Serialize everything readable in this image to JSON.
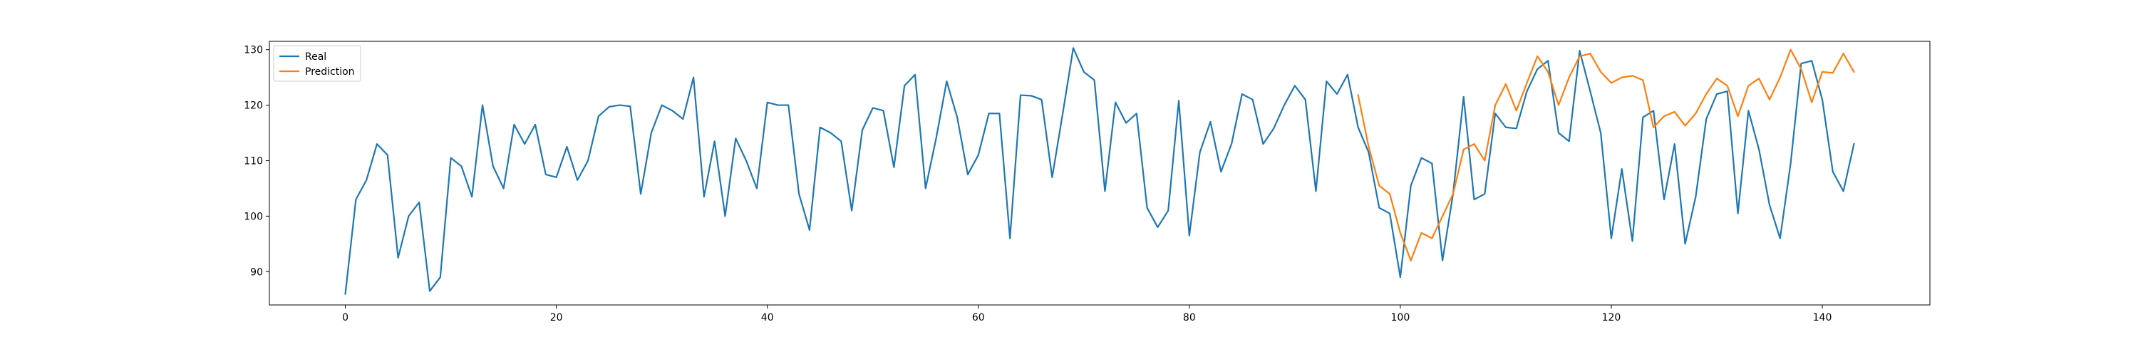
{
  "chart_data": {
    "type": "line",
    "title": "",
    "xlabel": "",
    "ylabel": "",
    "xlim": [
      -7.2,
      150.2
    ],
    "ylim": [
      84,
      131.5
    ],
    "xticks": [
      0,
      20,
      40,
      60,
      80,
      100,
      120,
      140
    ],
    "yticks": [
      90,
      100,
      110,
      120,
      130
    ],
    "grid": false,
    "legend_position": "top-left",
    "series": [
      {
        "name": "Real",
        "color": "#1f77b4",
        "x": [
          0,
          1,
          2,
          3,
          4,
          5,
          6,
          7,
          8,
          9,
          10,
          11,
          12,
          13,
          14,
          15,
          16,
          17,
          18,
          19,
          20,
          21,
          22,
          23,
          24,
          25,
          26,
          27,
          28,
          29,
          30,
          31,
          32,
          33,
          34,
          35,
          36,
          37,
          38,
          39,
          40,
          41,
          42,
          43,
          44,
          45,
          46,
          47,
          48,
          49,
          50,
          51,
          52,
          53,
          54,
          55,
          56,
          57,
          58,
          59,
          60,
          61,
          62,
          63,
          64,
          65,
          66,
          67,
          68,
          69,
          70,
          71,
          72,
          73,
          74,
          75,
          76,
          77,
          78,
          79,
          80,
          81,
          82,
          83,
          84,
          85,
          86,
          87,
          88,
          89,
          90,
          91,
          92,
          93,
          94,
          95,
          96,
          97,
          98,
          99,
          100,
          101,
          102,
          103,
          104,
          105,
          106,
          107,
          108,
          109,
          110,
          111,
          112,
          113,
          114,
          115,
          116,
          117,
          118,
          119,
          120,
          121,
          122,
          123,
          124,
          125,
          126,
          127,
          128,
          129,
          130,
          131,
          132,
          133,
          134,
          135,
          136,
          137,
          138,
          139,
          140,
          141,
          142,
          143
        ],
        "values": [
          86,
          103,
          106.5,
          113,
          111,
          92.5,
          100,
          102.5,
          86.5,
          89,
          110.5,
          109,
          103.5,
          120,
          109,
          105,
          116.5,
          113,
          116.5,
          107.5,
          107,
          112.5,
          106.5,
          110,
          118,
          119.7,
          120,
          119.8,
          104,
          115,
          120,
          119,
          117.5,
          125,
          103.5,
          113.5,
          100,
          114,
          110,
          105,
          120.5,
          120,
          120,
          104,
          97.5,
          116,
          115,
          113.5,
          101,
          115.5,
          119.5,
          119,
          108.8,
          123.5,
          125.5,
          105,
          114,
          124.3,
          117.8,
          107.5,
          111,
          118.5,
          118.5,
          96,
          121.8,
          121.7,
          121,
          107,
          118.5,
          130.3,
          126,
          124.5,
          104.5,
          120.5,
          116.8,
          118.5,
          101.5,
          98,
          101,
          120.8,
          96.5,
          111.5,
          117,
          108,
          113,
          122,
          121,
          113,
          115.8,
          120,
          123.5,
          121,
          104.5,
          124.3,
          122,
          125.5,
          116,
          111.5,
          101.5,
          100.5,
          89,
          105.5,
          110.5,
          109.5,
          92,
          104,
          121.5,
          103,
          104,
          118.5,
          116,
          115.8,
          122.5,
          126.5,
          128,
          115,
          113.5,
          129.8,
          122.5,
          115,
          96,
          108.5,
          95.5,
          117.8,
          119,
          103,
          113,
          95,
          103.5,
          117.5,
          122,
          122.5,
          100.5,
          119,
          112,
          102,
          96,
          109.5,
          127.5,
          128,
          121,
          108,
          104.5,
          113
        ]
      },
      {
        "name": "Prediction",
        "color": "#ff7f0e",
        "x": [
          96,
          97,
          98,
          99,
          100,
          101,
          102,
          103,
          104,
          105,
          106,
          107,
          108,
          109,
          110,
          111,
          112,
          113,
          114,
          115,
          116,
          117,
          118,
          119,
          120,
          121,
          122,
          123,
          124,
          125,
          126,
          127,
          128,
          129,
          130,
          131,
          132,
          133,
          134,
          135,
          136,
          137,
          138,
          139,
          140,
          141,
          142,
          143
        ],
        "values": [
          121.8,
          112.5,
          105.5,
          104,
          97,
          92,
          97,
          96,
          100,
          104,
          112,
          113,
          110,
          120,
          123.8,
          119,
          124,
          128.8,
          126,
          120,
          125,
          128.8,
          129.3,
          126,
          124,
          125,
          125.3,
          124.5,
          116,
          118,
          118.8,
          116.3,
          118.5,
          122,
          124.8,
          123.5,
          118,
          123.5,
          124.8,
          121,
          125,
          130,
          126.5,
          120.5,
          126,
          125.8,
          129.3,
          126
        ]
      }
    ]
  }
}
